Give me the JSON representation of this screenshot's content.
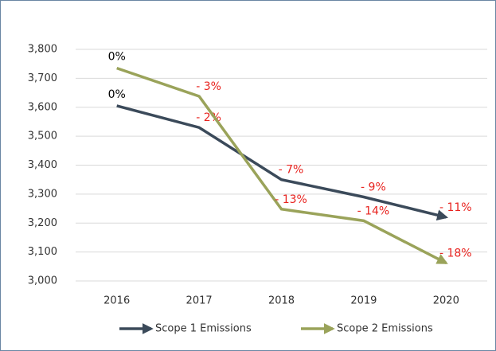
{
  "chart_data": {
    "type": "line",
    "categories": [
      "2016",
      "2017",
      "2018",
      "2019",
      "2020"
    ],
    "series": [
      {
        "name": "Scope 1 Emissions",
        "color": "#3b4a5a",
        "values": [
          3605,
          3530,
          3350,
          3290,
          3220
        ],
        "change_labels": [
          "0%",
          "- 2%",
          "- 7%",
          "- 9%",
          "- 11%"
        ]
      },
      {
        "name": "Scope 2 Emissions",
        "color": "#9aa35a",
        "values": [
          3735,
          3638,
          3248,
          3208,
          3062
        ],
        "change_labels": [
          "0%",
          "- 3%",
          "- 13%",
          "- 14%",
          "- 18%"
        ]
      }
    ],
    "label_colors": [
      "#000000",
      "#e8231f"
    ],
    "ylim": [
      3000,
      3800
    ],
    "yticks": [
      {
        "value": 3000,
        "label": "3,000"
      },
      {
        "value": 3100,
        "label": "3,100"
      },
      {
        "value": 3200,
        "label": "3,200"
      },
      {
        "value": 3300,
        "label": "3,300"
      },
      {
        "value": 3400,
        "label": "3,400"
      },
      {
        "value": 3500,
        "label": "3,500"
      },
      {
        "value": 3600,
        "label": "3,600"
      },
      {
        "value": 3700,
        "label": "3,700"
      },
      {
        "value": 3800,
        "label": "3,800"
      }
    ],
    "grid": true
  }
}
